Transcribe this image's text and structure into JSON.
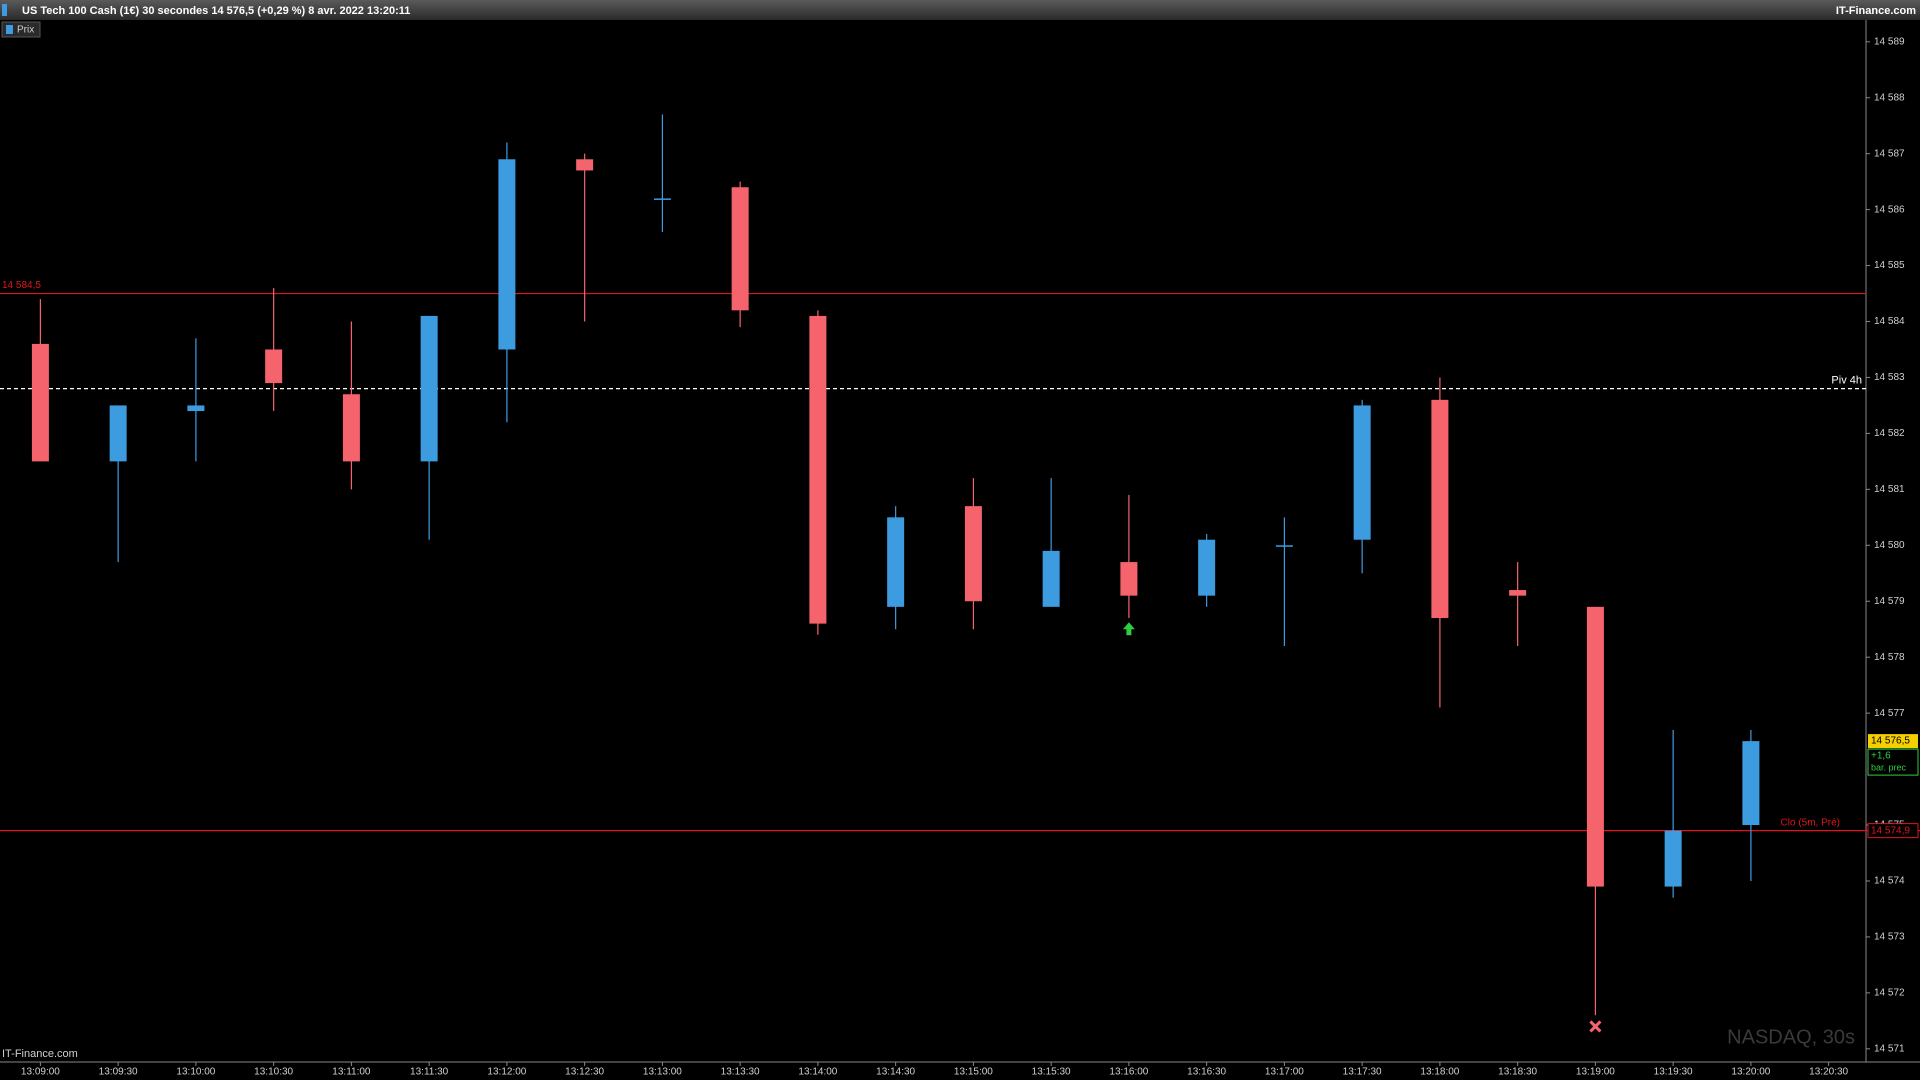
{
  "header": {
    "title": "US Tech 100 Cash (1€) 30 secondes 14 576,5 (+0,29 %) 8 avr. 2022 13:20:11",
    "brand": "IT-Finance.com"
  },
  "chart_data": {
    "type": "candlestick",
    "legend": "Prix",
    "watermark": "NASDAQ, 30s",
    "footer": "IT-Finance.com",
    "categories": [
      "13:09:00",
      "13:09:30",
      "13:10:00",
      "13:10:30",
      "13:11:00",
      "13:11:30",
      "13:12:00",
      "13:12:30",
      "13:13:00",
      "13:13:30",
      "13:14:00",
      "13:14:30",
      "13:15:00",
      "13:15:30",
      "13:16:00",
      "13:16:30",
      "13:17:00",
      "13:17:30",
      "13:18:00",
      "13:18:30",
      "13:19:00",
      "13:19:30",
      "13:20:00",
      "13:20:30"
    ],
    "open": [
      14583.6,
      14581.5,
      14582.4,
      14583.5,
      14582.7,
      14581.5,
      14583.5,
      14586.9,
      14586.2,
      14586.4,
      14584.1,
      14578.9,
      14580.7,
      14578.9,
      14579.7,
      14579.1,
      14580.0,
      14580.1,
      14582.6,
      14579.2,
      14578.9,
      14573.9,
      14575.0,
      null
    ],
    "high": [
      14584.4,
      14582.5,
      14583.7,
      14584.6,
      14584.0,
      14584.1,
      14587.2,
      14587.0,
      14587.7,
      14586.5,
      14584.2,
      14580.7,
      14581.2,
      14581.2,
      14580.9,
      14580.2,
      14580.5,
      14582.6,
      14583.0,
      14579.7,
      14578.9,
      14576.7,
      14576.7,
      null
    ],
    "low": [
      14581.5,
      14579.7,
      14581.5,
      14582.4,
      14581.0,
      14580.1,
      14582.2,
      14584.0,
      14585.6,
      14583.9,
      14578.4,
      14578.5,
      14578.5,
      14578.9,
      14578.7,
      14578.9,
      14578.2,
      14579.5,
      14577.1,
      14578.2,
      14571.6,
      14573.7,
      14574.0,
      null
    ],
    "close": [
      14581.5,
      14582.5,
      14582.5,
      14582.9,
      14581.5,
      14584.1,
      14586.9,
      14586.7,
      14586.2,
      14584.2,
      14578.6,
      14580.5,
      14579.0,
      14579.9,
      14579.1,
      14580.1,
      14580.0,
      14582.5,
      14578.7,
      14579.1,
      14573.9,
      14574.9,
      14576.5,
      null
    ],
    "up_color": "#3d9be0",
    "down_color": "#f5646d",
    "ylim": [
      14570.8,
      14589.3
    ],
    "yticks": [
      {
        "value": 14589,
        "label": "14 589"
      },
      {
        "value": 14588,
        "label": "14 588"
      },
      {
        "value": 14587,
        "label": "14 587"
      },
      {
        "value": 14586,
        "label": "14 586"
      },
      {
        "value": 14585,
        "label": "14 585"
      },
      {
        "value": 14584,
        "label": "14 584"
      },
      {
        "value": 14583,
        "label": "14 583"
      },
      {
        "value": 14582,
        "label": "14 582"
      },
      {
        "value": 14581,
        "label": "14 581"
      },
      {
        "value": 14580,
        "label": "14 580"
      },
      {
        "value": 14579,
        "label": "14 579"
      },
      {
        "value": 14578,
        "label": "14 578"
      },
      {
        "value": 14577,
        "label": "14 577"
      },
      {
        "value": 14575,
        "label": "14 575"
      },
      {
        "value": 14574,
        "label": "14 574"
      },
      {
        "value": 14573,
        "label": "14 573"
      },
      {
        "value": 14572,
        "label": "14 572"
      },
      {
        "value": 14571,
        "label": "14 571"
      }
    ],
    "levels": [
      {
        "value": 14584.5,
        "label": "14 584,5",
        "color": "#e0141e",
        "style": "solid"
      },
      {
        "value": 14582.8,
        "label": "Piv 4h",
        "color": "#ffffff",
        "style": "dashed"
      },
      {
        "value": 14574.9,
        "label": "Clo (5m, Pré)",
        "price_label": "14 574,9",
        "color": "#e0141e",
        "style": "solid"
      }
    ],
    "last": {
      "value": 14576.5,
      "label": "14 576,5",
      "change": "+1,6",
      "change_note": "bar. prec"
    },
    "signals": [
      {
        "x": "13:16:00",
        "value": 14578.5,
        "symbol": "up-arrow",
        "color": "#2ecc40"
      },
      {
        "x": "13:19:00",
        "value": 14571.4,
        "symbol": "cross",
        "color": "#f5646d"
      }
    ]
  }
}
